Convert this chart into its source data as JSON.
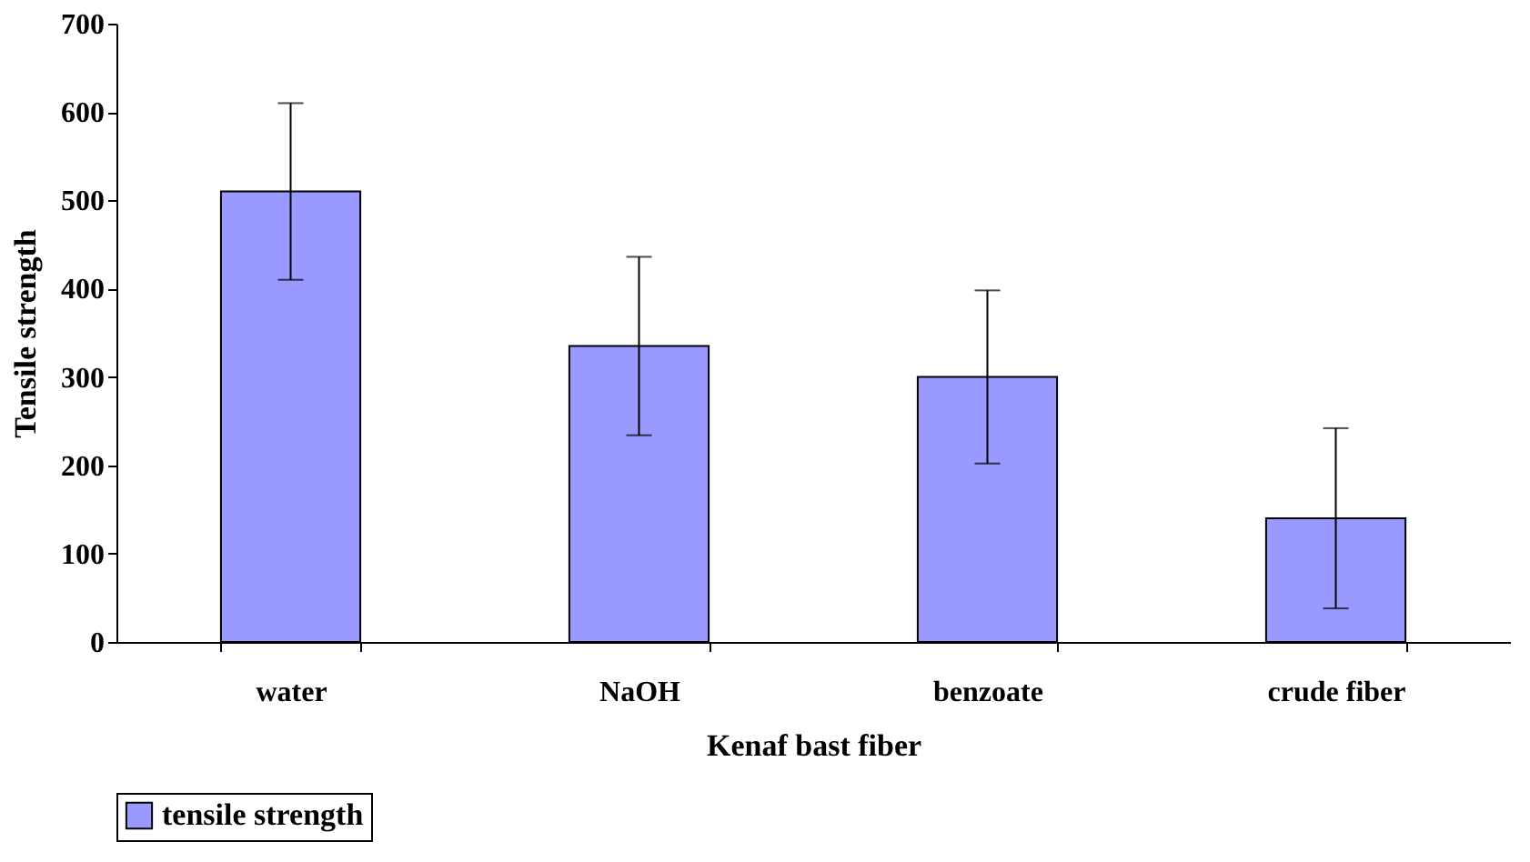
{
  "chart_data": {
    "type": "bar",
    "xlabel": "Kenaf bast fiber",
    "ylabel": "Tensile strength",
    "categories": [
      "water",
      "NaOH",
      "benzoate",
      "crude fiber"
    ],
    "series": [
      {
        "name": "tensile strength",
        "color": "#9999ff",
        "values": [
          510,
          335,
          300,
          140
        ],
        "errors": [
          100,
          101,
          98,
          102
        ]
      }
    ],
    "ylim": [
      0,
      700
    ],
    "yticks": [
      0,
      100,
      200,
      300,
      400,
      500,
      600,
      700
    ],
    "grid": false,
    "legend": "bottom"
  }
}
